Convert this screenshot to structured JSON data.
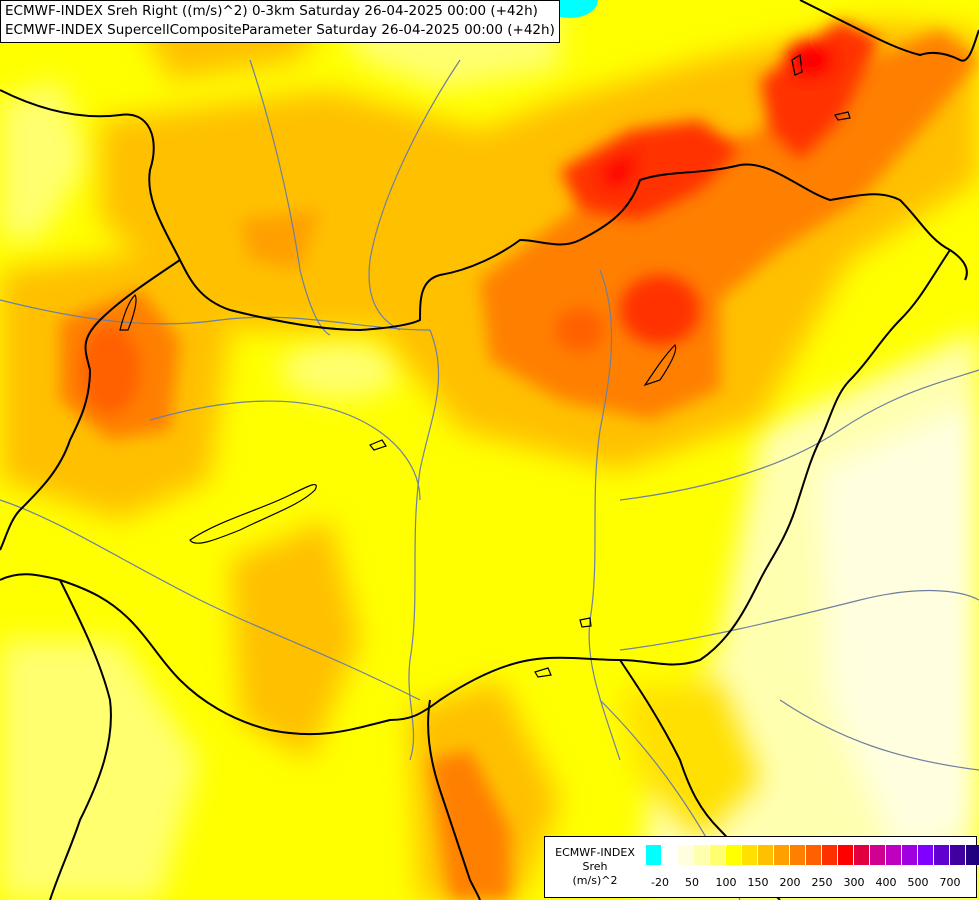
{
  "header": {
    "title_line_1": "ECMWF-INDEX Sreh Right ((m/s)^2) 0-3km Saturday 26-04-2025 00:00 (+42h)",
    "title_line_2": "ECMWF-INDEX SupercellCompositeParameter Saturday 26-04-2025 00:00 (+42h)"
  },
  "legend": {
    "title_line_1": "ECMWF-INDEX",
    "title_line_2": "Sreh",
    "title_line_3": "(m/s)^2",
    "colors": [
      "#00ffff",
      "#ffffff",
      "#ffffe0",
      "#ffffb0",
      "#ffff70",
      "#ffff00",
      "#ffe000",
      "#ffc000",
      "#ffa000",
      "#ff8000",
      "#ff6000",
      "#ff3000",
      "#ff0000",
      "#e00040",
      "#d00090",
      "#c000c0",
      "#a000e0",
      "#8000ff",
      "#6000d0",
      "#4000a0",
      "#200080"
    ],
    "ticks": [
      "-20",
      "50",
      "100",
      "150",
      "200",
      "250",
      "300",
      "400",
      "500",
      "700"
    ]
  },
  "map": {
    "background_color": "#ffff00",
    "high_color": "#ff0000",
    "border_color": "#000000",
    "river_color": "#6d7fa0",
    "lake_color": "#00ffff"
  }
}
